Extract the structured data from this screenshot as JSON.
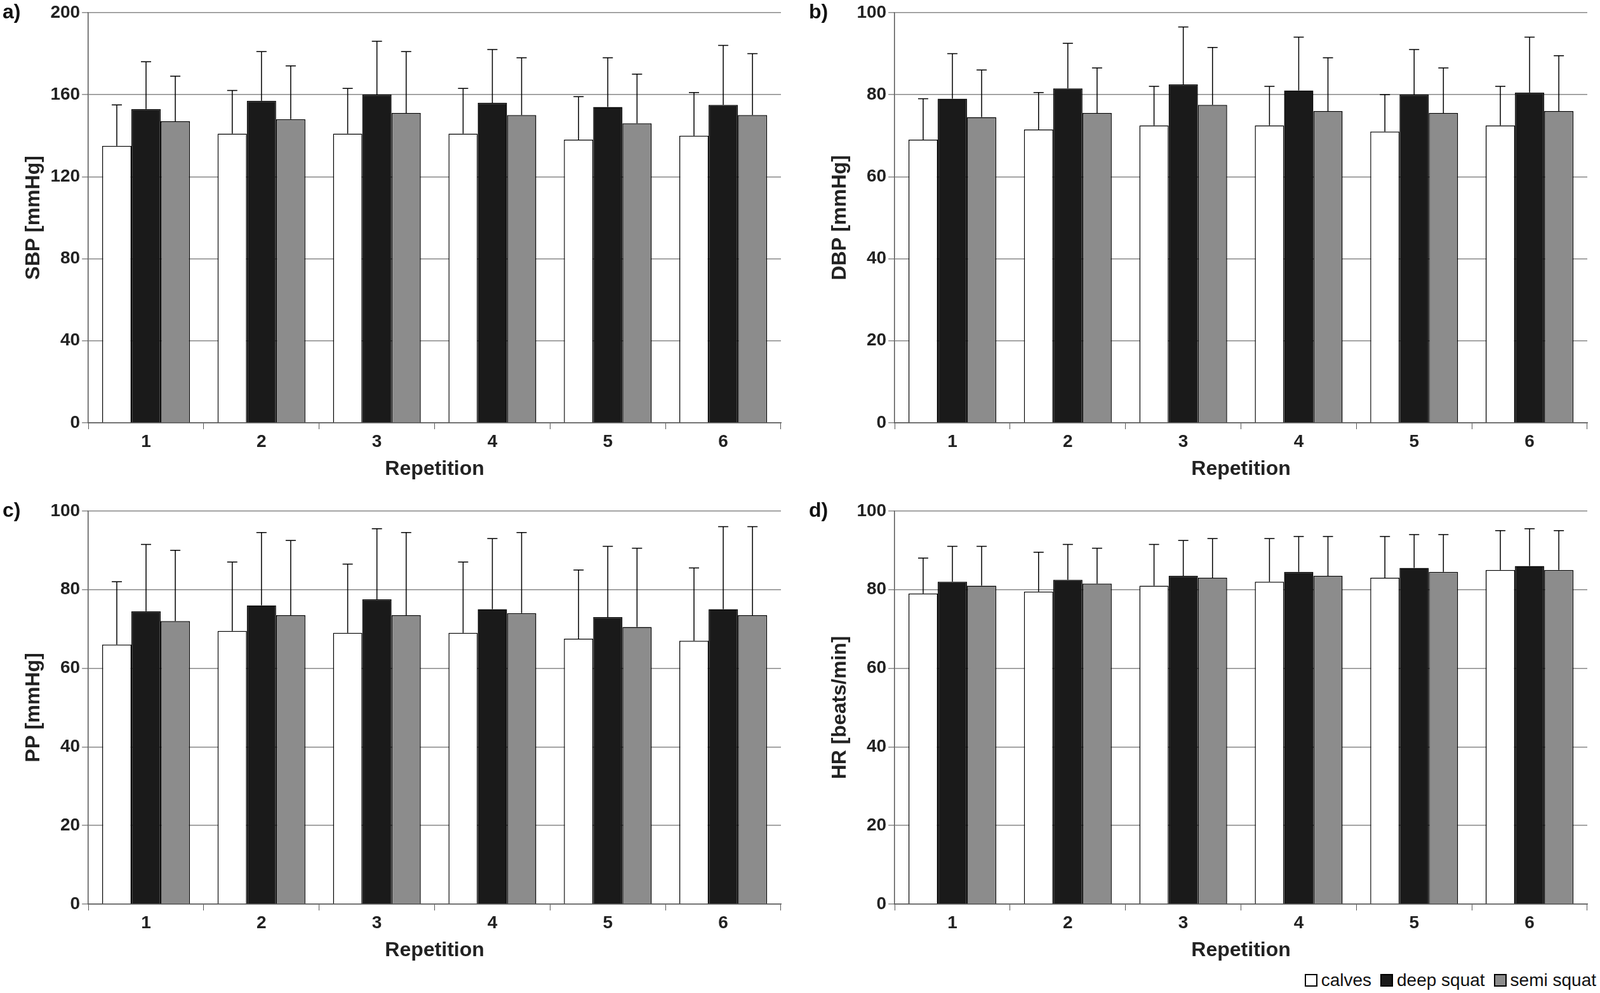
{
  "chart_data": [
    {
      "type": "bar",
      "title": "a)",
      "x_label": "Repetition",
      "y_label": "SBP [mmHg]",
      "categories": [
        "1",
        "2",
        "3",
        "4",
        "5",
        "6"
      ],
      "ylim": [
        0,
        200
      ],
      "yticks": [
        0,
        40,
        80,
        120,
        160,
        200
      ],
      "grid": true,
      "series": [
        {
          "name": "calves",
          "color": "#ffffff",
          "values": [
            135,
            141,
            141,
            141,
            138,
            140
          ],
          "errors": [
            20,
            21,
            22,
            22,
            21,
            21
          ]
        },
        {
          "name": "deep squat",
          "color": "#1a1a1a",
          "values": [
            153,
            157,
            160,
            156,
            154,
            155
          ],
          "errors": [
            23,
            24,
            26,
            26,
            24,
            29
          ]
        },
        {
          "name": "semi squat",
          "color": "#8c8c8c",
          "values": [
            147,
            148,
            151,
            150,
            146,
            150
          ],
          "errors": [
            22,
            26,
            30,
            28,
            24,
            30
          ]
        }
      ]
    },
    {
      "type": "bar",
      "title": "b)",
      "x_label": "Repetition",
      "y_label": "DBP [mmHg]",
      "categories": [
        "1",
        "2",
        "3",
        "4",
        "5",
        "6"
      ],
      "ylim": [
        0,
        100
      ],
      "yticks": [
        0,
        20,
        40,
        60,
        80,
        100
      ],
      "grid": true,
      "series": [
        {
          "name": "calves",
          "color": "#ffffff",
          "values": [
            69,
            71.5,
            72.5,
            72.5,
            71,
            72.5
          ],
          "errors": [
            10,
            9,
            9.5,
            9.5,
            9,
            9.5
          ]
        },
        {
          "name": "deep squat",
          "color": "#1a1a1a",
          "values": [
            79,
            81.5,
            82.5,
            81,
            80,
            80.5
          ],
          "errors": [
            11,
            11,
            14,
            13,
            11,
            13.5
          ]
        },
        {
          "name": "semi squat",
          "color": "#8c8c8c",
          "values": [
            74.5,
            75.5,
            77.5,
            76,
            75.5,
            76
          ],
          "errors": [
            11.5,
            11,
            14,
            13,
            11,
            13.5
          ]
        }
      ]
    },
    {
      "type": "bar",
      "title": "c)",
      "x_label": "Repetition",
      "y_label": "PP [mmHg]",
      "categories": [
        "1",
        "2",
        "3",
        "4",
        "5",
        "6"
      ],
      "ylim": [
        0,
        100
      ],
      "yticks": [
        0,
        20,
        40,
        60,
        80,
        100
      ],
      "grid": true,
      "series": [
        {
          "name": "calves",
          "color": "#ffffff",
          "values": [
            66,
            69.5,
            69,
            69,
            67.5,
            67
          ],
          "errors": [
            16,
            17.5,
            17.5,
            18,
            17.5,
            18.5
          ]
        },
        {
          "name": "deep squat",
          "color": "#1a1a1a",
          "values": [
            74.5,
            76,
            77.5,
            75,
            73,
            75
          ],
          "errors": [
            17,
            18.5,
            18,
            18,
            18,
            21
          ]
        },
        {
          "name": "semi squat",
          "color": "#8c8c8c",
          "values": [
            72,
            73.5,
            73.5,
            74,
            70.5,
            73.5
          ],
          "errors": [
            18,
            19,
            21,
            20.5,
            20,
            22.5
          ]
        }
      ]
    },
    {
      "type": "bar",
      "title": "d)",
      "x_label": "Repetition",
      "y_label": "HR [beats/min]",
      "categories": [
        "1",
        "2",
        "3",
        "4",
        "5",
        "6"
      ],
      "ylim": [
        0,
        100
      ],
      "yticks": [
        0,
        20,
        40,
        60,
        80,
        100
      ],
      "grid": true,
      "legend": "bottom right",
      "series": [
        {
          "name": "calves",
          "color": "#ffffff",
          "values": [
            79,
            79.5,
            81,
            82,
            83,
            85
          ],
          "errors": [
            9,
            10,
            10.5,
            11,
            10.5,
            10
          ]
        },
        {
          "name": "deep squat",
          "color": "#1a1a1a",
          "values": [
            82,
            82.5,
            83.5,
            84.5,
            85.5,
            86
          ],
          "errors": [
            9,
            9,
            9,
            9,
            8.5,
            9.5
          ]
        },
        {
          "name": "semi squat",
          "color": "#8c8c8c",
          "values": [
            81,
            81.5,
            83,
            83.5,
            84.5,
            85
          ],
          "errors": [
            10,
            9,
            10,
            10,
            9.5,
            10
          ]
        }
      ]
    }
  ]
}
